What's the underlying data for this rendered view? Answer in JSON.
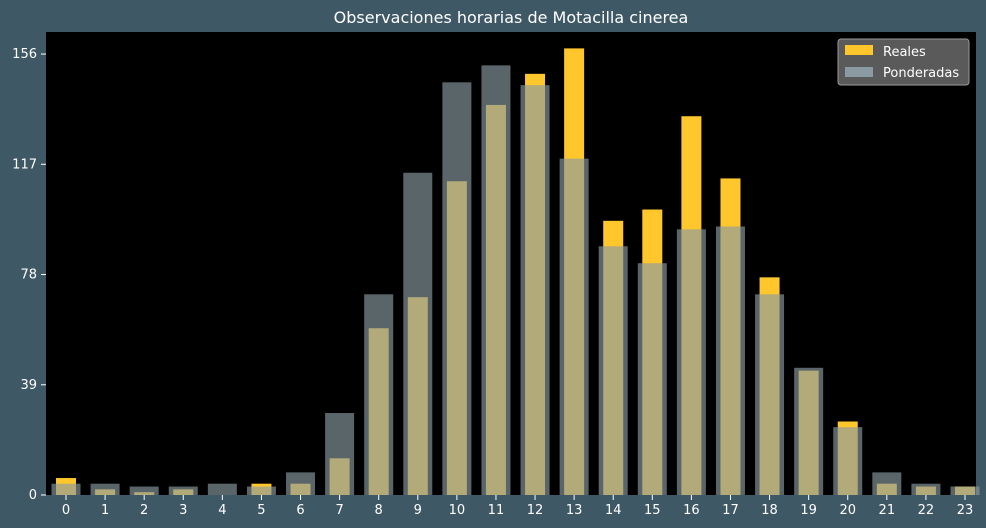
{
  "chart_data": {
    "type": "bar",
    "title": "Observaciones horarias de Motacilla cinerea",
    "xlabel": "",
    "ylabel": "",
    "categories": [
      "0",
      "1",
      "2",
      "3",
      "4",
      "5",
      "6",
      "7",
      "8",
      "9",
      "10",
      "11",
      "12",
      "13",
      "14",
      "15",
      "16",
      "17",
      "18",
      "19",
      "20",
      "21",
      "22",
      "23"
    ],
    "yticks": [
      0,
      39,
      78,
      117,
      156
    ],
    "ylim": [
      0,
      163.8
    ],
    "grid": false,
    "legend_position": "top-right",
    "series": [
      {
        "name": "Reales",
        "color": "#ffc72c",
        "values": [
          6,
          2,
          1,
          2,
          0,
          4,
          4,
          13,
          59,
          70,
          111,
          138,
          149,
          158,
          97,
          101,
          134,
          112,
          77,
          44,
          26,
          4,
          3,
          3
        ]
      },
      {
        "name": "Ponderadas",
        "color": "#8a9ba3",
        "values": [
          4,
          4,
          3,
          3,
          4,
          3,
          8,
          29,
          71,
          114,
          146,
          152,
          145,
          119,
          88,
          82,
          94,
          95,
          71,
          45,
          24,
          8,
          4,
          3
        ]
      }
    ]
  }
}
